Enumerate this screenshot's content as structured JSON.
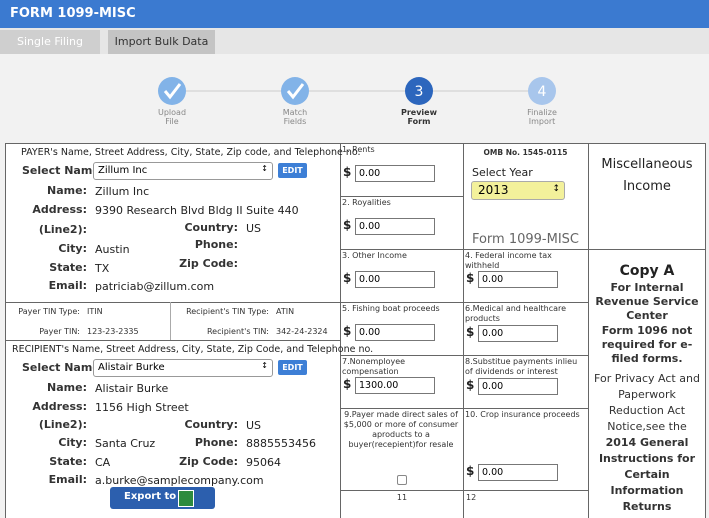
{
  "header": {
    "title": "FORM 1099-MISC"
  },
  "tabs": [
    "Single Filing",
    "Import Bulk Data"
  ],
  "steps": [
    {
      "label": [
        "Upload",
        "File"
      ]
    },
    {
      "label": [
        "Match",
        "Fields"
      ]
    },
    {
      "number": "3",
      "label": [
        "Preview",
        "Form"
      ]
    },
    {
      "number": "4",
      "label": [
        "Finalize",
        "Import"
      ]
    }
  ],
  "currency": "$",
  "payer": {
    "heading": "PAYER's Name, Street Address, City, State, Zip code, and Telephone no.",
    "select_label": "Select Name:",
    "select_value": "Zillum Inc",
    "edit": "EDIT",
    "name_label": "Name:",
    "name": "Zillum Inc",
    "address_label": "Address:",
    "address": "9390 Research Blvd Bldg II Suite 440",
    "line2_label": "(Line2):",
    "city_label": "City:",
    "city": "Austin",
    "state_label": "State:",
    "state": "TX",
    "email_label": "Email:",
    "email": "patriciab@zillum.com",
    "country_label": "Country:",
    "country": "US",
    "phone_label": "Phone:",
    "zip_label": "Zip Code:"
  },
  "tin": {
    "payer_tin_type_label": "Payer TIN Type:",
    "payer_tin_type": "ITIN",
    "recipient_tin_type_label": "Recipient's TIN Type:",
    "recipient_tin_type": "ATIN",
    "payer_tin_label": "Payer TIN:",
    "payer_tin": "123-23-2335",
    "recipient_tin_label": "Recipient's TIN:",
    "recipient_tin": "342-24-2324"
  },
  "recipient": {
    "heading": "RECIPIENT's Name, Street Address, City, State, Zip Code, and Telephone no.",
    "select_label": "Select Name:",
    "select_value": "Alistair Burke",
    "edit": "EDIT",
    "name_label": "Name:",
    "name": "Alistair Burke",
    "address_label": "Address:",
    "address": "1156 High Street",
    "line2_label": "(Line2):",
    "city_label": "City:",
    "city": "Santa Cruz",
    "state_label": "State:",
    "state": "CA",
    "email_label": "Email:",
    "email": "a.burke@samplecompany.com",
    "country_label": "Country:",
    "country": "US",
    "phone_label": "Phone:",
    "phone": "8885553456",
    "zip_label": "Zip Code:",
    "zip": "95064",
    "export": "Export to :"
  },
  "form": {
    "omb": "OMB No. 1545-0115",
    "year_label": "Select Year",
    "year": "2013",
    "form_name": "Form 1099-MISC",
    "title": "Miscellaneous Income",
    "copy": "Copy A",
    "copy_for": "For Internal Revenue Service Center",
    "note": "Form 1096 not required for e-filed forms.",
    "notice": "For Privacy Act and Paperwork Reduction Act Notice,see the",
    "notice_bold": "2014 General Instructions for Certain Information Returns"
  },
  "boxes": [
    {
      "label": "1. Rents",
      "value": "0.00"
    },
    {
      "label": "2. Royalities",
      "value": "0.00"
    },
    {
      "label": "3. Other Income",
      "value": "0.00"
    },
    {
      "label": "4. Federal income tax withheld",
      "value": "0.00"
    },
    {
      "label": "5. Fishing boat proceeds",
      "value": "0.00"
    },
    {
      "label": "6.Medical and healthcare products",
      "value": "0.00"
    },
    {
      "label": "7.Nonemployee compensation",
      "value": "1300.00"
    },
    {
      "label": "8.Substitue payments inlieu of dividends or interest",
      "value": "0.00"
    },
    {
      "label": "9.Payer made direct sales of $5,000 or more of consumer aproducts to a buyer(recepient)for resale"
    },
    {
      "label": "10. Crop insurance proceeds",
      "value": "0.00"
    },
    {
      "label": "11"
    },
    {
      "label": "12"
    }
  ]
}
